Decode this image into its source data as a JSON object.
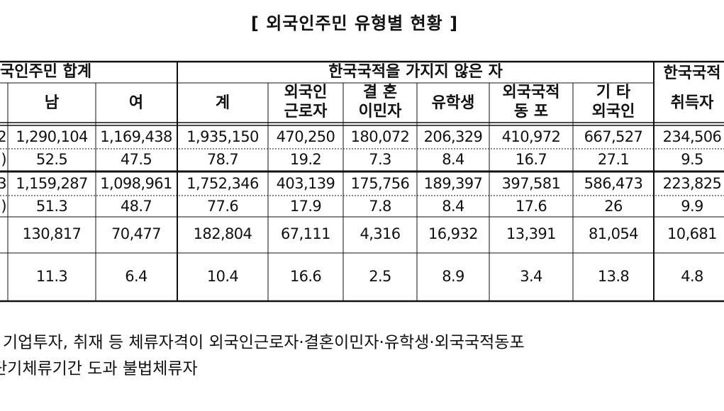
{
  "title": "[ 외국인주민 유형별 현황 ]",
  "table": {
    "group_headers": [
      "국인주민 합계",
      "한국국적을 가지지 않은 자"
    ],
    "columns": [
      "남",
      "여",
      "계",
      [
        "외국인",
        "근로자"
      ],
      [
        "결 혼",
        "이민자"
      ],
      "유학생",
      [
        "외국국적",
        "동 포"
      ],
      [
        "기 타",
        "외국인"
      ],
      [
        "한국국적",
        "취득자"
      ]
    ],
    "rows": [
      {
        "label": "2",
        "cells": [
          "1,290,104",
          "1,169,438",
          "1,935,150",
          "470,250",
          "180,072",
          "206,329",
          "410,972",
          "667,527",
          "234,506"
        ]
      },
      {
        "label": ")",
        "cells": [
          "52.5",
          "47.5",
          "78.7",
          "19.2",
          "7.3",
          "8.4",
          "16.7",
          "27.1",
          "9.5"
        ]
      },
      {
        "label": "3",
        "cells": [
          "1,159,287",
          "1,098,961",
          "1,752,346",
          "403,139",
          "175,756",
          "189,397",
          "397,581",
          "586,473",
          "223,825"
        ]
      },
      {
        "label": ")",
        "cells": [
          "51.3",
          "48.7",
          "77.6",
          "17.9",
          "7.8",
          "8.4",
          "17.6",
          "26",
          "9.9"
        ]
      },
      {
        "cells": [
          "130,817",
          "70,477",
          "182,804",
          "67,111",
          "4,316",
          "16,932",
          "13,391",
          "81,054",
          "10,681"
        ]
      },
      {
        "cells": [
          "11.3",
          "6.4",
          "10.4",
          "16.6",
          "2.5",
          "8.9",
          "3.4",
          "13.8",
          "4.8"
        ]
      }
    ]
  },
  "notes": [
    "기업투자, 취재 등 체류자격이 외국인근로자·결혼이민자·유학생·외국국적동포",
    "단기체류기간 도과 불법체류자"
  ]
}
